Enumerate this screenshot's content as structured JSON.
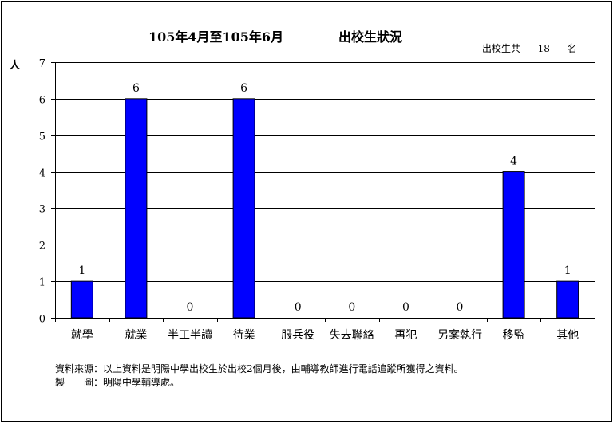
{
  "chart_data": {
    "type": "bar",
    "title": "105年4月至105年6月",
    "subtitle": "出校生狀況",
    "ylabel": "人",
    "ylim": [
      0,
      7
    ],
    "yticks": [
      0,
      1,
      2,
      3,
      4,
      5,
      6,
      7
    ],
    "categories": [
      "就學",
      "就業",
      "半工半讀",
      "待業",
      "服兵役",
      "失去聯絡",
      "再犯",
      "另案執行",
      "移監",
      "其他"
    ],
    "values": [
      1,
      6,
      0,
      6,
      0,
      0,
      0,
      0,
      4,
      1
    ],
    "data_labels": true,
    "grid": true,
    "bar_color": "#0000ff"
  },
  "total": {
    "prefix": "出校生共",
    "count": "18",
    "suffix": "名"
  },
  "notes": {
    "source": "資料來源：以上資料是明陽中學出校生於出校2個月後，由輔導教師進行電話追蹤所獲得之資料。",
    "maker": "製　　圖：明陽中學輔導處。"
  }
}
